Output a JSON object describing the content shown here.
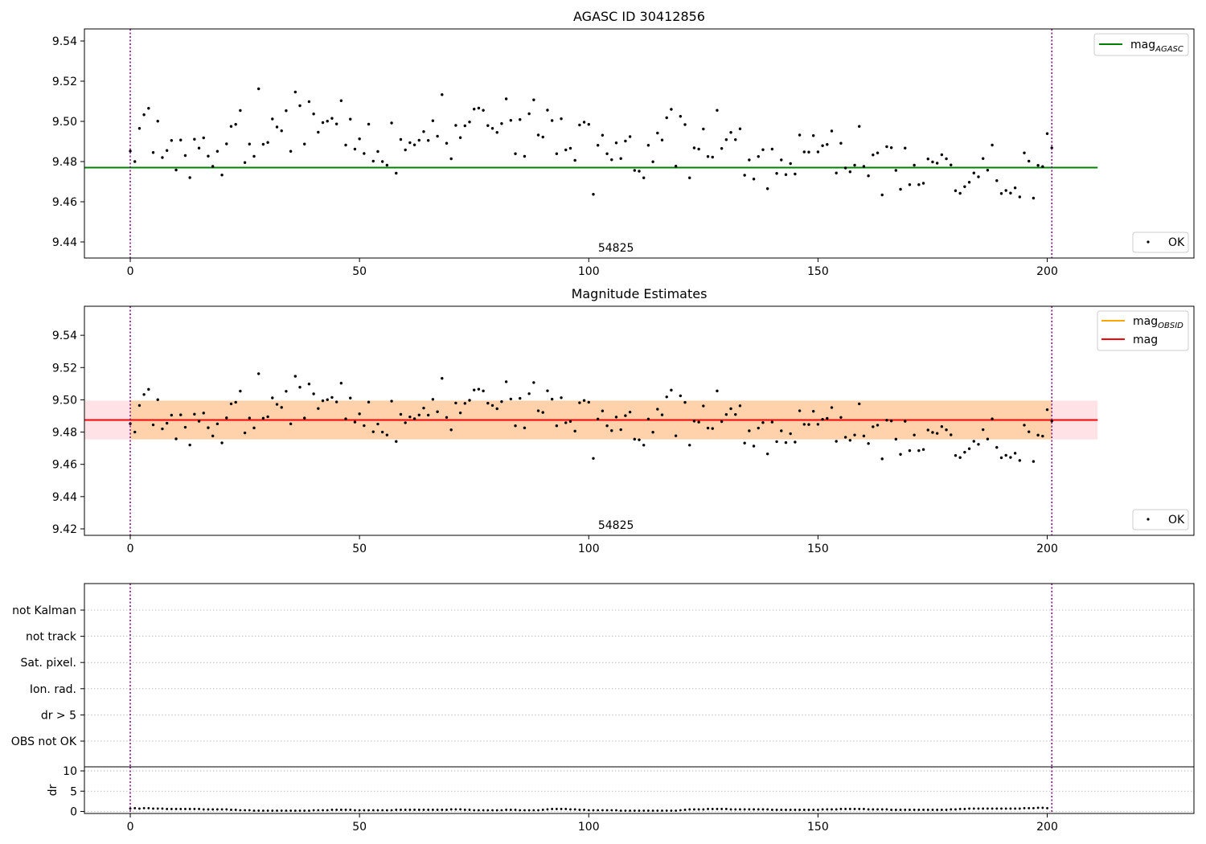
{
  "figure": {
    "colors": {
      "points": "#000000",
      "agasc_line": "#008000",
      "mag_line": "#ff0000",
      "obsid_line": "#ffa500",
      "obsid_band": "#ffa500",
      "mag_band": "#ffb6c1",
      "obsid_marker": "#800080"
    }
  },
  "chart_data": [
    {
      "type": "scatter",
      "title": "AGASC ID 30412856",
      "xlim": [
        -10,
        232
      ],
      "ylim": [
        9.432,
        9.546
      ],
      "xticks": [
        0,
        50,
        100,
        150,
        200
      ],
      "yticks": [
        9.44,
        9.46,
        9.48,
        9.5,
        9.52,
        9.54
      ],
      "obsid_boundaries": [
        0,
        201
      ],
      "obsid_label": {
        "text": "54825",
        "x": 100.5
      },
      "hlines": [
        {
          "name": "mag",
          "sub": "AGASC",
          "y": 9.477,
          "x": [
            -10,
            211
          ],
          "color": "#008000"
        }
      ],
      "legend_lines": {
        "placement": "upper right"
      },
      "legend_points": {
        "placement": "lower right",
        "label": "OK"
      }
    },
    {
      "type": "scatter",
      "title": "Magnitude Estimates",
      "xlim": [
        -10,
        232
      ],
      "ylim": [
        9.416,
        9.558
      ],
      "xticks": [
        0,
        50,
        100,
        150,
        200
      ],
      "yticks": [
        9.42,
        9.44,
        9.46,
        9.48,
        9.5,
        9.52,
        9.54
      ],
      "obsid_boundaries": [
        0,
        201
      ],
      "obsid_label": {
        "text": "54825",
        "x": 100.5
      },
      "bands": [
        {
          "y": [
            9.4755,
            9.4995
          ],
          "x": [
            -10,
            211
          ],
          "color": "#ffb6c1",
          "opacity": 0.4
        },
        {
          "y": [
            9.4755,
            9.4995
          ],
          "x": [
            0,
            201
          ],
          "color": "#ffa500",
          "opacity": 0.25
        }
      ],
      "hlines": [
        {
          "name": "mag",
          "sub": "OBSID",
          "y": 9.4875,
          "x": [
            0,
            201
          ],
          "color": "#ffa500"
        },
        {
          "name": "mag",
          "sub": "",
          "y": 9.4875,
          "x": [
            -10,
            211
          ],
          "color": "#ff0000"
        }
      ],
      "legend_lines": {
        "placement": "upper right"
      },
      "legend_points": {
        "placement": "lower right",
        "label": "OK"
      }
    },
    {
      "type": "scatter",
      "flags_panel": {
        "categories": [
          "not Kalman",
          "not track",
          "Sat. pixel.",
          "Ion. rad.",
          "dr > 5",
          "OBS not OK"
        ],
        "xlim": [
          -10,
          232
        ],
        "grid": true
      },
      "dr_panel": {
        "ylabel": "dr",
        "ylim": [
          -0.5,
          11
        ],
        "yticks": [
          0,
          5,
          10
        ],
        "xticks": [
          0,
          50,
          100,
          150,
          200
        ],
        "xlim": [
          -10,
          232
        ]
      },
      "obsid_boundaries": [
        0,
        201
      ]
    }
  ],
  "mag_values": [
    9.4852,
    9.48,
    9.4965,
    9.5033,
    9.5065,
    9.4845,
    9.5001,
    9.482,
    9.4855,
    9.4905,
    9.4758,
    9.4907,
    9.483,
    9.472,
    9.4911,
    9.4867,
    9.4918,
    9.4827,
    9.4776,
    9.4851,
    9.4733,
    9.4888,
    9.4975,
    9.4985,
    9.5054,
    9.4795,
    9.4887,
    9.4826,
    9.5162,
    9.4886,
    9.4895,
    9.5012,
    9.4972,
    9.4953,
    9.5053,
    9.4851,
    9.5146,
    9.5078,
    9.4887,
    9.5098,
    9.5037,
    9.4946,
    9.4994,
    9.5001,
    9.5015,
    9.4987,
    9.5103,
    9.4882,
    9.5011,
    9.4862,
    9.4913,
    9.484,
    9.4986,
    9.4802,
    9.485,
    9.48,
    9.4782,
    9.4992,
    9.4742,
    9.491,
    9.4858,
    9.4894,
    9.4883,
    9.4906,
    9.4949,
    9.4905,
    9.5003,
    9.4926,
    9.5133,
    9.4891,
    9.4814,
    9.498,
    9.4919,
    9.4978,
    9.4997,
    9.5061,
    9.5066,
    9.5055,
    9.4979,
    9.4965,
    9.4945,
    9.4989,
    9.5112,
    9.5005,
    9.4839,
    9.5009,
    9.4826,
    9.5038,
    9.5107,
    9.4932,
    9.4922,
    9.5056,
    9.5004,
    9.4839,
    9.5013,
    9.4858,
    9.4866,
    9.4806,
    9.4982,
    9.4996,
    9.4985,
    9.4637,
    9.4881,
    9.4931,
    9.4839,
    9.4809,
    9.4893,
    9.4815,
    9.4902,
    9.4924,
    9.4756,
    9.4752,
    9.4719,
    9.4881,
    9.4799,
    9.4942,
    9.4907,
    9.5018,
    9.506,
    9.4777,
    9.5025,
    9.4984,
    9.4719,
    9.4868,
    9.4862,
    9.4962,
    9.4825,
    9.4822,
    9.5055,
    9.4865,
    9.4909,
    9.4945,
    9.4909,
    9.4963,
    9.4732,
    9.4808,
    9.4713,
    9.4825,
    9.4859,
    9.4665,
    9.4862,
    9.4741,
    9.4808,
    9.4735,
    9.479,
    9.4738,
    9.4932,
    9.4848,
    9.4847,
    9.4929,
    9.4848,
    9.4879,
    9.4885,
    9.4952,
    9.4743,
    9.4891,
    9.4768,
    9.4749,
    9.4782,
    9.4975,
    9.4776,
    9.4729,
    9.4833,
    9.4843,
    9.4634,
    9.4874,
    9.4869,
    9.4756,
    9.4662,
    9.4867,
    9.4685,
    9.4782,
    9.4685,
    9.4692,
    9.4813,
    9.4798,
    9.4792,
    9.4834,
    9.4814,
    9.4783,
    9.4655,
    9.4642,
    9.4675,
    9.4697,
    9.4743,
    9.4724,
    9.4815,
    9.4757,
    9.4882,
    9.4705,
    9.4641,
    9.4656,
    9.4643,
    9.4669,
    9.4624,
    9.4843,
    9.4802,
    9.4618,
    9.4781,
    9.4775,
    9.4939,
    9.4868
  ],
  "dr_values": [
    0.7,
    0.8,
    0.7,
    0.8,
    0.8,
    0.7,
    0.7,
    0.7,
    0.6,
    0.6,
    0.6,
    0.6,
    0.6,
    0.6,
    0.6,
    0.6,
    0.5,
    0.5,
    0.5,
    0.5,
    0.5,
    0.5,
    0.4,
    0.4,
    0.3,
    0.3,
    0.3,
    0.2,
    0.2,
    0.2,
    0.2,
    0.2,
    0.2,
    0.2,
    0.2,
    0.2,
    0.2,
    0.2,
    0.2,
    0.2,
    0.3,
    0.3,
    0.3,
    0.3,
    0.4,
    0.4,
    0.4,
    0.4,
    0.4,
    0.3,
    0.3,
    0.3,
    0.3,
    0.3,
    0.3,
    0.3,
    0.3,
    0.3,
    0.4,
    0.4,
    0.4,
    0.4,
    0.4,
    0.4,
    0.4,
    0.4,
    0.4,
    0.4,
    0.4,
    0.4,
    0.5,
    0.5,
    0.5,
    0.4,
    0.4,
    0.3,
    0.3,
    0.3,
    0.3,
    0.3,
    0.3,
    0.3,
    0.4,
    0.4,
    0.4,
    0.3,
    0.3,
    0.3,
    0.3,
    0.3,
    0.4,
    0.5,
    0.6,
    0.6,
    0.6,
    0.6,
    0.5,
    0.5,
    0.4,
    0.4,
    0.3,
    0.3,
    0.3,
    0.3,
    0.3,
    0.3,
    0.3,
    0.2,
    0.2,
    0.2,
    0.2,
    0.2,
    0.2,
    0.2,
    0.2,
    0.2,
    0.2,
    0.2,
    0.2,
    0.2,
    0.3,
    0.4,
    0.5,
    0.5,
    0.5,
    0.5,
    0.6,
    0.6,
    0.6,
    0.6,
    0.6,
    0.5,
    0.5,
    0.5,
    0.5,
    0.5,
    0.5,
    0.5,
    0.5,
    0.5,
    0.4,
    0.4,
    0.4,
    0.4,
    0.4,
    0.4,
    0.4,
    0.4,
    0.4,
    0.4,
    0.4,
    0.5,
    0.5,
    0.5,
    0.5,
    0.6,
    0.6,
    0.6,
    0.6,
    0.6,
    0.6,
    0.5,
    0.5,
    0.5,
    0.5,
    0.5,
    0.4,
    0.4,
    0.4,
    0.4,
    0.4,
    0.4,
    0.4,
    0.4,
    0.4,
    0.4,
    0.4,
    0.4,
    0.4,
    0.5,
    0.5,
    0.6,
    0.6,
    0.7,
    0.7,
    0.7,
    0.7,
    0.7,
    0.7,
    0.7,
    0.7,
    0.7,
    0.7,
    0.7,
    0.7,
    0.8,
    0.8,
    0.8,
    0.9,
    0.9,
    0.8
  ]
}
